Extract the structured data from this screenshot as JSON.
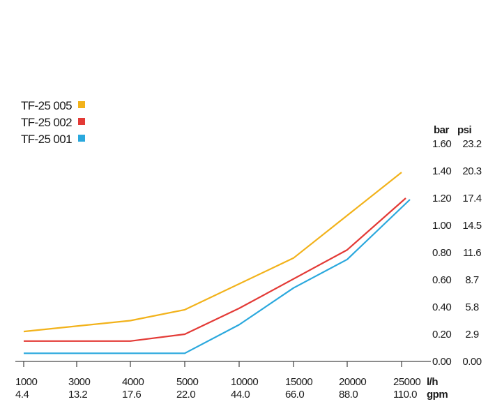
{
  "chart_data": {
    "type": "line",
    "title": "",
    "xlabel": "",
    "ylabel": "",
    "x_units": [
      "l/h",
      "gpm"
    ],
    "x_ticks_lh": [
      "1000",
      "3000",
      "4000",
      "5000",
      "10000",
      "15000",
      "20000",
      "25000"
    ],
    "x_ticks_gpm": [
      "4.4",
      "13.2",
      "17.6",
      "22.0",
      "44.0",
      "66.0",
      "88.0",
      "110.0"
    ],
    "y_units": [
      "bar",
      "psi"
    ],
    "y_ticks_bar": [
      "0.00",
      "0.20",
      "0.40",
      "0.60",
      "0.80",
      "1.00",
      "1.20",
      "1.40",
      "1.60"
    ],
    "y_ticks_psi": [
      "0.00",
      "2.9",
      "5.8",
      "8.7",
      "11.6",
      "14.5",
      "17.4",
      "20.3",
      "23.2"
    ],
    "ylim": [
      0,
      1.6
    ],
    "grid": false,
    "legend": "top-left",
    "series": [
      {
        "name": "TF-25 005",
        "color": "#f2b21a",
        "x": [
          1000,
          4000,
          5000,
          15000,
          25000
        ],
        "y": [
          0.22,
          0.3,
          0.38,
          0.76,
          1.39
        ]
      },
      {
        "name": "TF-25 002",
        "color": "#e33a36",
        "x": [
          1000,
          4000,
          5000,
          10000,
          20000,
          25000
        ],
        "y": [
          0.15,
          0.15,
          0.2,
          0.39,
          0.82,
          1.2
        ]
      },
      {
        "name": "TF-25 001",
        "color": "#2aa8dd",
        "x": [
          1000,
          5000,
          10000,
          15000,
          20000,
          25000
        ],
        "y": [
          0.06,
          0.06,
          0.27,
          0.54,
          0.75,
          1.19
        ]
      }
    ]
  }
}
